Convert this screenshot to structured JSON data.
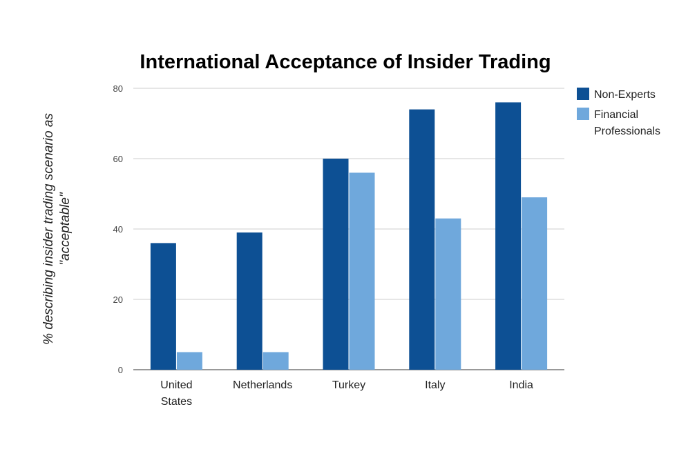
{
  "chart_data": {
    "type": "bar",
    "title": "International Acceptance of Insider Trading",
    "xlabel": "",
    "ylabel_lines": [
      "% describing insider trading scenario as",
      "\"acceptable\""
    ],
    "categories": [
      [
        "United",
        "States"
      ],
      [
        "Netherlands"
      ],
      [
        "Turkey"
      ],
      [
        "Italy"
      ],
      [
        "India"
      ]
    ],
    "series": [
      {
        "name": "Non-Experts",
        "color": "#0d5094",
        "values": [
          36,
          39,
          60,
          74,
          76
        ]
      },
      {
        "name_lines": [
          "Financial",
          "Professionals"
        ],
        "color": "#6fa8dc",
        "values": [
          5,
          5,
          56,
          43,
          49
        ]
      }
    ],
    "ylim": [
      0,
      80
    ],
    "yticks": [
      "0",
      "20",
      "40",
      "60",
      "80"
    ],
    "grid": true,
    "legend_position": "right"
  }
}
